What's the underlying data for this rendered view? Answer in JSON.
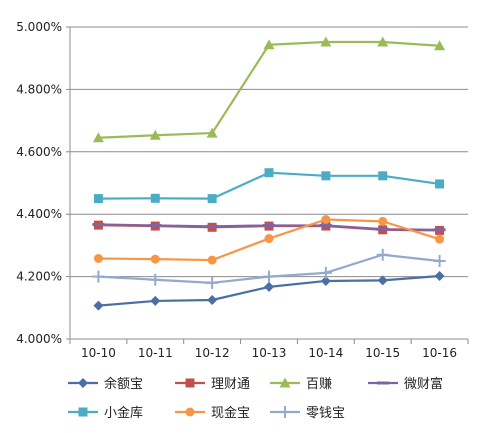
{
  "chart_data": {
    "type": "line",
    "categories": [
      "10-10",
      "10-11",
      "10-12",
      "10-13",
      "10-14",
      "10-15",
      "10-16"
    ],
    "y_tick_labels": [
      "4.000%",
      "4.200%",
      "4.400%",
      "4.600%",
      "4.800%",
      "5.000%"
    ],
    "ylim": [
      4.0,
      5.0
    ],
    "grid": "horizontal",
    "legend_position": "bottom",
    "series": [
      {
        "name": "余额宝",
        "color": "#4a6fa5",
        "marker": "diamond",
        "values": [
          4.107,
          4.122,
          4.125,
          4.167,
          4.186,
          4.188,
          4.202
        ]
      },
      {
        "name": "理财通",
        "color": "#c0504d",
        "marker": "square",
        "values": [
          4.365,
          4.362,
          4.358,
          4.362,
          4.362,
          4.35,
          4.348
        ]
      },
      {
        "name": "百赚",
        "color": "#9bbb59",
        "marker": "triangle",
        "values": [
          4.645,
          4.653,
          4.66,
          4.943,
          4.952,
          4.952,
          4.94
        ]
      },
      {
        "name": "微财富",
        "color": "#8064a2",
        "marker": "dash",
        "values": [
          4.367,
          4.364,
          4.361,
          4.364,
          4.364,
          4.352,
          4.35
        ]
      },
      {
        "name": "小金库",
        "color": "#4bacc6",
        "marker": "square",
        "values": [
          4.45,
          4.451,
          4.45,
          4.533,
          4.523,
          4.523,
          4.497
        ]
      },
      {
        "name": "现金宝",
        "color": "#f79646",
        "marker": "circle",
        "values": [
          4.258,
          4.256,
          4.253,
          4.322,
          4.383,
          4.377,
          4.32
        ]
      },
      {
        "name": "零钱宝",
        "color": "#93a9cf",
        "marker": "cross",
        "values": [
          4.2,
          4.19,
          4.18,
          4.2,
          4.212,
          4.27,
          4.25
        ]
      }
    ]
  }
}
